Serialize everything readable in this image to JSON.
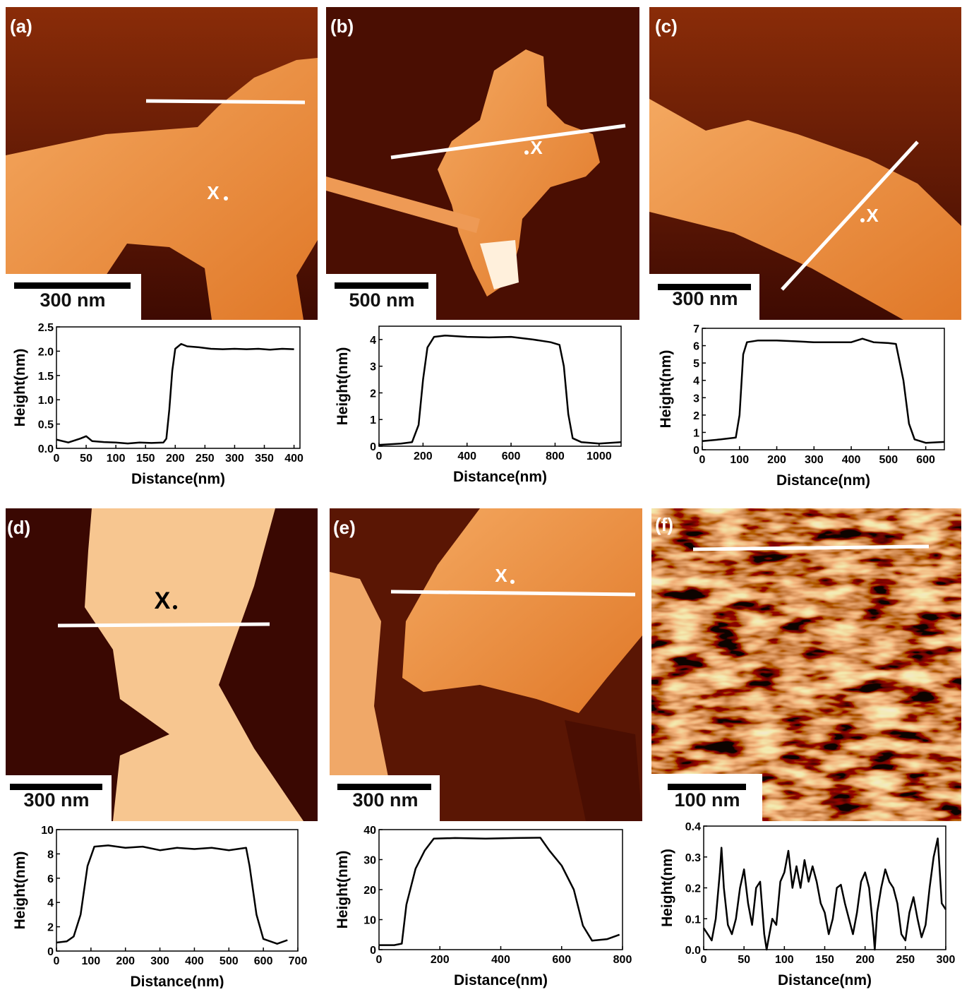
{
  "chart_data": [
    {
      "type": "line",
      "xlabel": "Distance(nm)",
      "ylabel": "Height(nm)",
      "color": "#000000",
      "x": [
        0,
        10,
        20,
        40,
        50,
        60,
        80,
        100,
        120,
        140,
        160,
        180,
        185,
        190,
        195,
        200,
        210,
        220,
        240,
        260,
        280,
        300,
        320,
        340,
        360,
        380,
        400
      ],
      "values": [
        0.18,
        0.15,
        0.12,
        0.2,
        0.25,
        0.15,
        0.13,
        0.12,
        0.1,
        0.12,
        0.11,
        0.12,
        0.2,
        0.8,
        1.6,
        2.05,
        2.15,
        2.1,
        2.08,
        2.05,
        2.04,
        2.05,
        2.04,
        2.05,
        2.03,
        2.05,
        2.04
      ],
      "xlim": [
        0,
        410
      ],
      "ylim": [
        0,
        2.5
      ],
      "xticks": [
        0,
        50,
        100,
        150,
        200,
        250,
        300,
        350,
        400
      ],
      "yticks": [
        {
          "value": 0,
          "label": "0.0"
        },
        0.5,
        {
          "value": 1,
          "label": "1.0"
        },
        1.5,
        {
          "value": 2,
          "label": "2.0"
        },
        2.5
      ]
    },
    {
      "type": "line",
      "xlabel": "Distance(nm)",
      "ylabel": "Height(nm)",
      "color": "#000000",
      "x": [
        0,
        100,
        150,
        180,
        200,
        220,
        250,
        300,
        400,
        500,
        600,
        700,
        780,
        820,
        840,
        860,
        880,
        920,
        1000,
        1100
      ],
      "values": [
        0.05,
        0.1,
        0.15,
        0.8,
        2.5,
        3.7,
        4.1,
        4.15,
        4.1,
        4.08,
        4.1,
        4.0,
        3.9,
        3.8,
        3.0,
        1.2,
        0.3,
        0.15,
        0.1,
        0.15
      ],
      "xlim": [
        0,
        1100
      ],
      "ylim": [
        0,
        4.5
      ],
      "xticks": [
        0,
        200,
        400,
        600,
        800,
        1000
      ],
      "yticks": [
        0,
        1,
        2,
        3,
        4
      ]
    },
    {
      "type": "line",
      "xlabel": "Distance(nm)",
      "ylabel": "Height(nm)",
      "color": "#000000",
      "x": [
        0,
        50,
        90,
        100,
        110,
        120,
        150,
        200,
        250,
        300,
        350,
        400,
        430,
        460,
        500,
        520,
        540,
        555,
        570,
        600,
        650
      ],
      "values": [
        0.5,
        0.6,
        0.7,
        2,
        5.5,
        6.2,
        6.3,
        6.3,
        6.25,
        6.2,
        6.2,
        6.2,
        6.4,
        6.2,
        6.15,
        6.1,
        4,
        1.5,
        0.6,
        0.4,
        0.45
      ],
      "xlim": [
        0,
        650
      ],
      "ylim": [
        0,
        7
      ],
      "xticks": [
        0,
        100,
        200,
        300,
        400,
        500,
        600
      ],
      "yticks": [
        0,
        1,
        2,
        3,
        4,
        5,
        6,
        7
      ]
    },
    {
      "type": "line",
      "xlabel": "Distance(nm)",
      "ylabel": "Height(nm)",
      "color": "#000000",
      "x": [
        0,
        30,
        50,
        70,
        90,
        110,
        150,
        200,
        250,
        300,
        350,
        400,
        450,
        500,
        550,
        560,
        580,
        600,
        640,
        670
      ],
      "values": [
        0.7,
        0.8,
        1.2,
        3,
        7,
        8.6,
        8.7,
        8.5,
        8.6,
        8.3,
        8.5,
        8.4,
        8.5,
        8.3,
        8.5,
        7,
        3,
        1,
        0.6,
        0.9
      ],
      "xlim": [
        0,
        700
      ],
      "ylim": [
        0,
        10
      ],
      "xticks": [
        0,
        100,
        200,
        300,
        400,
        500,
        600,
        700
      ],
      "yticks": [
        0,
        2,
        4,
        6,
        8,
        10
      ]
    },
    {
      "type": "line",
      "xlabel": "Distance(nm)",
      "ylabel": "Height(nm)",
      "color": "#000000",
      "x": [
        0,
        50,
        75,
        90,
        120,
        150,
        180,
        250,
        350,
        450,
        530,
        560,
        600,
        640,
        670,
        700,
        750,
        790
      ],
      "values": [
        1.5,
        1.5,
        2,
        15,
        27,
        33,
        37,
        37.2,
        37,
        37.2,
        37.3,
        33,
        28,
        20,
        8,
        3,
        3.5,
        5
      ],
      "xlim": [
        0,
        800
      ],
      "ylim": [
        0,
        40
      ],
      "xticks": [
        0,
        200,
        400,
        600,
        800
      ],
      "yticks": [
        0,
        10,
        20,
        30,
        40
      ]
    },
    {
      "type": "line",
      "xlabel": "Distance(nm)",
      "ylabel": "Height(nm)",
      "color": "#000000",
      "x": [
        0,
        5,
        10,
        15,
        20,
        22,
        25,
        30,
        35,
        40,
        45,
        50,
        55,
        60,
        65,
        70,
        75,
        78,
        80,
        85,
        90,
        95,
        100,
        105,
        110,
        115,
        120,
        125,
        130,
        135,
        140,
        145,
        150,
        155,
        160,
        165,
        170,
        175,
        180,
        185,
        190,
        195,
        200,
        205,
        210,
        212,
        215,
        220,
        225,
        230,
        235,
        240,
        245,
        250,
        255,
        260,
        265,
        270,
        275,
        280,
        285,
        290,
        295,
        300
      ],
      "values": [
        0.07,
        0.05,
        0.03,
        0.1,
        0.25,
        0.33,
        0.2,
        0.08,
        0.05,
        0.1,
        0.2,
        0.26,
        0.15,
        0.08,
        0.2,
        0.22,
        0.05,
        0.0,
        0.03,
        0.1,
        0.08,
        0.22,
        0.25,
        0.32,
        0.2,
        0.27,
        0.2,
        0.29,
        0.22,
        0.27,
        0.22,
        0.15,
        0.12,
        0.05,
        0.1,
        0.2,
        0.21,
        0.15,
        0.1,
        0.05,
        0.12,
        0.22,
        0.25,
        0.2,
        0.07,
        0.0,
        0.12,
        0.2,
        0.26,
        0.22,
        0.2,
        0.15,
        0.05,
        0.03,
        0.12,
        0.17,
        0.1,
        0.04,
        0.08,
        0.2,
        0.3,
        0.36,
        0.15,
        0.13
      ],
      "xlim": [
        0,
        300
      ],
      "ylim": [
        0,
        0.4
      ],
      "xticks": [
        0,
        50,
        100,
        150,
        200,
        250,
        300
      ],
      "yticks": [
        {
          "value": 0,
          "label": "0.0"
        },
        0.1,
        0.2,
        0.3,
        0.4
      ]
    }
  ],
  "images": [
    {
      "label": "(a)",
      "scale_bar": "300 nm",
      "marker": "X"
    },
    {
      "label": "(b)",
      "scale_bar": "500 nm",
      "marker": "X"
    },
    {
      "label": "(c)",
      "scale_bar": "300 nm",
      "marker": "X"
    },
    {
      "label": "(d)",
      "scale_bar": "300 nm",
      "marker": "X"
    },
    {
      "label": "(e)",
      "scale_bar": "300 nm",
      "marker": "X"
    },
    {
      "label": "(f)",
      "scale_bar": "100 nm"
    }
  ]
}
